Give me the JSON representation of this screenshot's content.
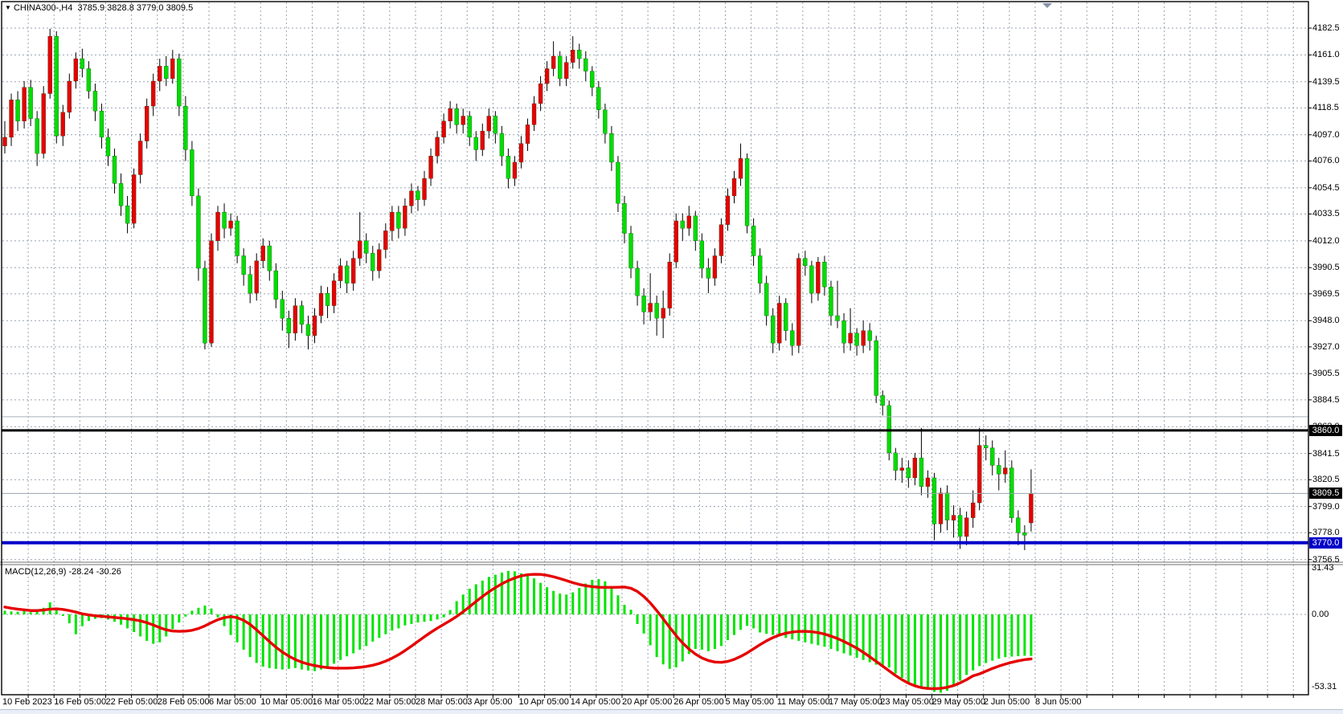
{
  "header": {
    "dropdown_icon": "▼",
    "symbol": "CHINA300-,H4",
    "ohlc_text": "3785.9 3828.8 3779.0 3809.5",
    "open": "3785.9",
    "high": "3828.8",
    "low": "3779.0",
    "close": "3809.5"
  },
  "indicator_label": "MACD(12,26,9) -28.24 -30.26",
  "price_axis": {
    "ticks": [
      "4182.5",
      "4161.0",
      "4139.5",
      "4118.5",
      "4097.0",
      "4076.0",
      "4054.5",
      "4033.5",
      "4012.0",
      "3990.5",
      "3969.5",
      "3948.0",
      "3927.0",
      "3905.5",
      "3884.5",
      "3863.0",
      "3841.5",
      "3820.5",
      "3799.0",
      "3778.0",
      "3756.5"
    ],
    "markers": [
      {
        "text": "3860.0",
        "price": 3860.0,
        "bg": "#000000",
        "fg": "#ffffff"
      },
      {
        "text": "3809.5",
        "price": 3809.5,
        "bg": "#000000",
        "fg": "#ffffff"
      },
      {
        "text": "3770.0",
        "price": 3770.0,
        "bg": "#0000c8",
        "fg": "#ffffff"
      }
    ]
  },
  "macd_axis": {
    "top": "31.43",
    "zero": "0.00",
    "bottom": "-53.31"
  },
  "time_axis": {
    "labels": [
      "10 Feb 2023",
      "16 Feb 05:00",
      "22 Feb 05:00",
      "28 Feb 05:00",
      "6 Mar 05:00",
      "10 Mar 05:00",
      "16 Mar 05:00",
      "22 Mar 05:00",
      "28 Mar 05:00",
      "3 Apr 05:00",
      "10 Apr 05:00",
      "14 Apr 05:00",
      "20 Apr 05:00",
      "26 Apr 05:00",
      "5 May 05:00",
      "11 May 05:00",
      "17 May 05:00",
      "23 May 05:00",
      "29 May 05:00",
      "2 Jun 05:00",
      "8 Jun 05:00"
    ]
  },
  "colors": {
    "bull": "#e60000",
    "bear": "#00dd00",
    "wick": "#000000",
    "grid": "#98a2b0",
    "macd_histogram": "#00e400",
    "macd_signal": "#e60000",
    "level_black": "#000000",
    "level_blue": "#0000c8",
    "last_price_line": "#9aa5b0",
    "shift_marker": "#8593a8"
  },
  "chart_data": {
    "type": "candlestick+macd",
    "title": "CHINA300-,H4",
    "timeframe": "H4",
    "note": "red candles = bullish, green candles = bearish (Chinese color convention)",
    "price_axis_range": {
      "top": 4182.5,
      "bottom": 3756.5
    },
    "levels": [
      {
        "price": 3860.0,
        "color": "#000000",
        "width": 3,
        "role": "horizontal-line"
      },
      {
        "price": 3871.0,
        "color": "#aab2bc",
        "width": 1,
        "role": "thin-gray-line"
      },
      {
        "price": 3809.5,
        "color": "#9aa5b0",
        "width": 1,
        "role": "last-price-line"
      },
      {
        "price": 3770.0,
        "color": "#0000c8",
        "width": 4,
        "role": "horizontal-line"
      }
    ],
    "candles_ohlc": [
      [
        4088,
        4108,
        4082,
        4095
      ],
      [
        4095,
        4130,
        4088,
        4125
      ],
      [
        4125,
        4132,
        4100,
        4108
      ],
      [
        4108,
        4140,
        4102,
        4135
      ],
      [
        4135,
        4141,
        4104,
        4110
      ],
      [
        4110,
        4116,
        4072,
        4082
      ],
      [
        4082,
        4136,
        4078,
        4130
      ],
      [
        4130,
        4182,
        4126,
        4176
      ],
      [
        4176,
        4180,
        4090,
        4096
      ],
      [
        4096,
        4121,
        4088,
        4115
      ],
      [
        4115,
        4146,
        4110,
        4140
      ],
      [
        4140,
        4163,
        4134,
        4158
      ],
      [
        4158,
        4166,
        4143,
        4150
      ],
      [
        4150,
        4156,
        4126,
        4132
      ],
      [
        4132,
        4138,
        4108,
        4116
      ],
      [
        4116,
        4122,
        4086,
        4095
      ],
      [
        4095,
        4102,
        4072,
        4080
      ],
      [
        4080,
        4086,
        4050,
        4058
      ],
      [
        4058,
        4066,
        4032,
        4040
      ],
      [
        4040,
        4048,
        4018,
        4026
      ],
      [
        4026,
        4070,
        4022,
        4065
      ],
      [
        4065,
        4098,
        4058,
        4092
      ],
      [
        4092,
        4126,
        4086,
        4120
      ],
      [
        4120,
        4146,
        4112,
        4140
      ],
      [
        4140,
        4158,
        4132,
        4152
      ],
      [
        4152,
        4160,
        4136,
        4142
      ],
      [
        4142,
        4165,
        4138,
        4158
      ],
      [
        4158,
        4162,
        4112,
        4120
      ],
      [
        4120,
        4128,
        4076,
        4085
      ],
      [
        4085,
        4092,
        4040,
        4048
      ],
      [
        4048,
        4054,
        3980,
        3990
      ],
      [
        3990,
        3996,
        3925,
        3930
      ],
      [
        3930,
        4018,
        3927,
        4012
      ],
      [
        4012,
        4040,
        4004,
        4035
      ],
      [
        4035,
        4042,
        4014,
        4022
      ],
      [
        4022,
        4034,
        4016,
        4028
      ],
      [
        4028,
        4032,
        3994,
        4000
      ],
      [
        4000,
        4006,
        3976,
        3985
      ],
      [
        3985,
        3992,
        3962,
        3970
      ],
      [
        3970,
        4002,
        3964,
        3996
      ],
      [
        3996,
        4014,
        3990,
        4008
      ],
      [
        4008,
        4012,
        3980,
        3988
      ],
      [
        3988,
        3994,
        3958,
        3965
      ],
      [
        3965,
        3972,
        3940,
        3950
      ],
      [
        3950,
        3956,
        3926,
        3938
      ],
      [
        3938,
        3966,
        3932,
        3960
      ],
      [
        3960,
        3964,
        3938,
        3945
      ],
      [
        3945,
        3952,
        3925,
        3936
      ],
      [
        3936,
        3958,
        3930,
        3952
      ],
      [
        3952,
        3976,
        3946,
        3970
      ],
      [
        3970,
        3975,
        3950,
        3960
      ],
      [
        3960,
        3986,
        3954,
        3980
      ],
      [
        3980,
        3998,
        3974,
        3992
      ],
      [
        3992,
        3996,
        3970,
        3978
      ],
      [
        3978,
        4004,
        3972,
        3998
      ],
      [
        3998,
        4035,
        3992,
        4012
      ],
      [
        4012,
        4018,
        3994,
        4002
      ],
      [
        4002,
        4008,
        3980,
        3988
      ],
      [
        3988,
        4010,
        3982,
        4005
      ],
      [
        4005,
        4026,
        3998,
        4020
      ],
      [
        4020,
        4040,
        4012,
        4035
      ],
      [
        4035,
        4040,
        4014,
        4022
      ],
      [
        4022,
        4046,
        4016,
        4040
      ],
      [
        4040,
        4058,
        4034,
        4052
      ],
      [
        4052,
        4056,
        4036,
        4045
      ],
      [
        4045,
        4068,
        4040,
        4062
      ],
      [
        4062,
        4086,
        4056,
        4080
      ],
      [
        4080,
        4100,
        4074,
        4095
      ],
      [
        4095,
        4114,
        4090,
        4108
      ],
      [
        4108,
        4124,
        4102,
        4118
      ],
      [
        4118,
        4122,
        4098,
        4105
      ],
      [
        4105,
        4118,
        4098,
        4112
      ],
      [
        4112,
        4116,
        4088,
        4095
      ],
      [
        4095,
        4100,
        4076,
        4085
      ],
      [
        4085,
        4106,
        4080,
        4100
      ],
      [
        4100,
        4118,
        4094,
        4112
      ],
      [
        4112,
        4116,
        4090,
        4098
      ],
      [
        4098,
        4104,
        4072,
        4080
      ],
      [
        4080,
        4086,
        4054,
        4062
      ],
      [
        4062,
        4080,
        4056,
        4075
      ],
      [
        4075,
        4096,
        4070,
        4090
      ],
      [
        4090,
        4110,
        4084,
        4105
      ],
      [
        4105,
        4128,
        4100,
        4122
      ],
      [
        4122,
        4144,
        4116,
        4138
      ],
      [
        4138,
        4156,
        4132,
        4150
      ],
      [
        4150,
        4172,
        4144,
        4160
      ],
      [
        4160,
        4164,
        4136,
        4142
      ],
      [
        4142,
        4160,
        4136,
        4155
      ],
      [
        4155,
        4176,
        4150,
        4165
      ],
      [
        4165,
        4170,
        4150,
        4158
      ],
      [
        4158,
        4164,
        4140,
        4148
      ],
      [
        4148,
        4152,
        4128,
        4135
      ],
      [
        4135,
        4140,
        4110,
        4117
      ],
      [
        4117,
        4122,
        4090,
        4098
      ],
      [
        4098,
        4104,
        4068,
        4075
      ],
      [
        4075,
        4080,
        4035,
        4042
      ],
      [
        4042,
        4048,
        4010,
        4018
      ],
      [
        4018,
        4024,
        3982,
        3990
      ],
      [
        3990,
        3996,
        3960,
        3968
      ],
      [
        3968,
        3974,
        3945,
        3955
      ],
      [
        3955,
        3986,
        3948,
        3962
      ],
      [
        3962,
        3968,
        3936,
        3950
      ],
      [
        3950,
        3972,
        3934,
        3958
      ],
      [
        3958,
        4002,
        3952,
        3995
      ],
      [
        3995,
        4034,
        3990,
        4028
      ],
      [
        4028,
        4034,
        4012,
        4022
      ],
      [
        4022,
        4040,
        4016,
        4032
      ],
      [
        4032,
        4036,
        4004,
        4012
      ],
      [
        4012,
        4018,
        3982,
        3990
      ],
      [
        3990,
        3998,
        3970,
        3982
      ],
      [
        3982,
        4006,
        3976,
        4000
      ],
      [
        4000,
        4030,
        3994,
        4025
      ],
      [
        4025,
        4054,
        4020,
        4048
      ],
      [
        4048,
        4068,
        4042,
        4062
      ],
      [
        4062,
        4090,
        4056,
        4078
      ],
      [
        4078,
        4082,
        4018,
        4024
      ],
      [
        4024,
        4030,
        3992,
        4000
      ],
      [
        4000,
        4006,
        3970,
        3978
      ],
      [
        3978,
        3984,
        3944,
        3952
      ],
      [
        3952,
        3958,
        3922,
        3930
      ],
      [
        3930,
        3968,
        3924,
        3962
      ],
      [
        3962,
        3966,
        3932,
        3940
      ],
      [
        3940,
        3946,
        3920,
        3928
      ],
      [
        3928,
        4002,
        3922,
        3998
      ],
      [
        3998,
        4004,
        3984,
        3992
      ],
      [
        3992,
        3996,
        3962,
        3970
      ],
      [
        3970,
        3999,
        3964,
        3995
      ],
      [
        3995,
        4000,
        3968,
        3975
      ],
      [
        3975,
        3980,
        3944,
        3952
      ],
      [
        3952,
        3980,
        3942,
        3948
      ],
      [
        3948,
        3954,
        3922,
        3930
      ],
      [
        3930,
        3958,
        3924,
        3938
      ],
      [
        3938,
        3942,
        3920,
        3928
      ],
      [
        3928,
        3948,
        3922,
        3940
      ],
      [
        3940,
        3946,
        3924,
        3932
      ],
      [
        3932,
        3936,
        3882,
        3888
      ],
      [
        3888,
        3892,
        3872,
        3880
      ],
      [
        3880,
        3884,
        3836,
        3842
      ],
      [
        3842,
        3846,
        3820,
        3828
      ],
      [
        3828,
        3838,
        3818,
        3830
      ],
      [
        3830,
        3836,
        3814,
        3822
      ],
      [
        3822,
        3842,
        3816,
        3838
      ],
      [
        3838,
        3862,
        3808,
        3815
      ],
      [
        3815,
        3828,
        3806,
        3822
      ],
      [
        3822,
        3826,
        3772,
        3785
      ],
      [
        3785,
        3814,
        3778,
        3810
      ],
      [
        3810,
        3816,
        3780,
        3788
      ],
      [
        3788,
        3800,
        3774,
        3792
      ],
      [
        3792,
        3798,
        3765,
        3775
      ],
      [
        3775,
        3795,
        3768,
        3790
      ],
      [
        3790,
        3812,
        3782,
        3802
      ],
      [
        3802,
        3862,
        3796,
        3848
      ],
      [
        3848,
        3856,
        3836,
        3846
      ],
      [
        3846,
        3852,
        3824,
        3832
      ],
      [
        3832,
        3838,
        3812,
        3825
      ],
      [
        3825,
        3844,
        3818,
        3830
      ],
      [
        3830,
        3836,
        3786,
        3790
      ],
      [
        3790,
        3796,
        3768,
        3778
      ],
      [
        3778,
        3784,
        3764,
        3776
      ],
      [
        3785.9,
        3828.8,
        3779.0,
        3809.5
      ]
    ],
    "macd": {
      "params": "12,26,9",
      "current_macd": -28.24,
      "current_signal": -30.26,
      "axis_range": {
        "top": 31.43,
        "bottom": -53.31
      },
      "histogram": [
        2.5,
        2.0,
        1.8,
        2.2,
        1.5,
        2.0,
        4.5,
        8.2,
        4.0,
        -1.0,
        -6.0,
        -13.5,
        -8.0,
        -4.5,
        -3.0,
        -2.5,
        -3.5,
        -5.0,
        -7.0,
        -9.5,
        -12.0,
        -15.0,
        -18.0,
        -20.0,
        -19.0,
        -15.0,
        -10.0,
        -5.5,
        -1.5,
        2.5,
        4.5,
        6.0,
        4.0,
        -2.0,
        -8.0,
        -14.0,
        -19.0,
        -24.0,
        -29.0,
        -33.0,
        -35.5,
        -36.5,
        -37.0,
        -37.5,
        -37.0,
        -36.5,
        -37.5,
        -38.2,
        -38.6,
        -37.5,
        -35.5,
        -33.5,
        -31.0,
        -28.5,
        -26.5,
        -24.0,
        -21.5,
        -18.5,
        -16.0,
        -13.5,
        -11.0,
        -9.5,
        -7.5,
        -6.5,
        -5.5,
        -5.0,
        -4.5,
        -3.5,
        -2.0,
        3.0,
        9.0,
        13.5,
        17.5,
        20.5,
        23.0,
        25.5,
        27.0,
        28.5,
        29.6,
        29.3,
        28.0,
        26.5,
        24.5,
        21.5,
        18.5,
        16.0,
        14.2,
        13.5,
        15.0,
        18.0,
        21.0,
        23.5,
        24.0,
        22.5,
        19.0,
        13.0,
        6.5,
        3.2,
        -6.5,
        -13.0,
        -21.0,
        -29.0,
        -34.0,
        -37.0,
        -36.0,
        -32.0,
        -27.0,
        -23.5,
        -24.0,
        -25.0,
        -23.5,
        -21.5,
        -17.5,
        -14.0,
        -10.5,
        -7.8,
        -9.5,
        -12.3,
        -13.2,
        -14.0,
        -15.0,
        -16.0,
        -17.0,
        -18.0,
        -19.0,
        -20.0,
        -21.0,
        -22.0,
        -23.5,
        -25.0,
        -26.5,
        -28.0,
        -29.5,
        -31.0,
        -32.5,
        -34.2,
        -35.0,
        -36.1,
        -40.2,
        -43.2,
        -46.2,
        -48.0,
        -49.2,
        -51.2,
        -52.7,
        -53.3,
        -52.0,
        -49.2,
        -45.1,
        -41.2,
        -38.1,
        -35.1,
        -33.1,
        -31.5,
        -30.1,
        -29.1,
        -28.7,
        -28.4,
        -28.1,
        -28.24
      ],
      "signal": [
        5.0,
        4.2,
        3.6,
        3.1,
        2.6,
        2.6,
        3.0,
        3.6,
        3.8,
        3.4,
        2.6,
        1.6,
        0.4,
        -0.3,
        -0.9,
        -1.3,
        -1.7,
        -2.1,
        -2.5,
        -3.0,
        -3.6,
        -4.4,
        -5.6,
        -7.2,
        -9.0,
        -10.5,
        -11.3,
        -11.5,
        -11.4,
        -10.8,
        -9.6,
        -7.8,
        -5.6,
        -3.6,
        -2.2,
        -1.5,
        -2.2,
        -4.0,
        -6.8,
        -10.5,
        -14.5,
        -18.5,
        -22.3,
        -25.6,
        -28.4,
        -30.7,
        -32.5,
        -33.8,
        -34.8,
        -35.6,
        -36.2,
        -36.5,
        -36.6,
        -36.6,
        -36.4,
        -36.0,
        -35.4,
        -34.6,
        -33.4,
        -31.8,
        -29.8,
        -27.4,
        -24.6,
        -21.6,
        -18.4,
        -15.2,
        -12.2,
        -9.4,
        -6.8,
        -4.2,
        -1.4,
        1.8,
        5.2,
        8.8,
        12.2,
        15.4,
        18.2,
        20.8,
        23.0,
        24.8,
        26.2,
        27.0,
        27.3,
        27.2,
        26.6,
        25.6,
        24.4,
        23.0,
        21.6,
        20.4,
        19.5,
        18.9,
        18.5,
        18.4,
        18.4,
        18.5,
        18.6,
        17.8,
        15.6,
        12.2,
        7.8,
        2.6,
        -3.0,
        -8.8,
        -14.4,
        -19.4,
        -23.6,
        -27.0,
        -29.6,
        -31.4,
        -32.4,
        -32.6,
        -32.0,
        -30.6,
        -28.6,
        -26.2,
        -23.4,
        -20.6,
        -18.0,
        -15.8,
        -14.0,
        -12.8,
        -12.0,
        -11.6,
        -11.5,
        -11.8,
        -12.4,
        -13.4,
        -14.8,
        -16.4,
        -18.4,
        -20.6,
        -23.0,
        -25.8,
        -28.8,
        -32.0,
        -35.2,
        -38.4,
        -41.6,
        -44.4,
        -46.8,
        -48.6,
        -49.8,
        -50.4,
        -50.5,
        -50.3,
        -49.6,
        -48.4,
        -46.6,
        -44.4,
        -41.8,
        -40.5,
        -38.6,
        -36.8,
        -35.2,
        -33.8,
        -32.6,
        -31.6,
        -30.8,
        -30.26
      ]
    }
  }
}
